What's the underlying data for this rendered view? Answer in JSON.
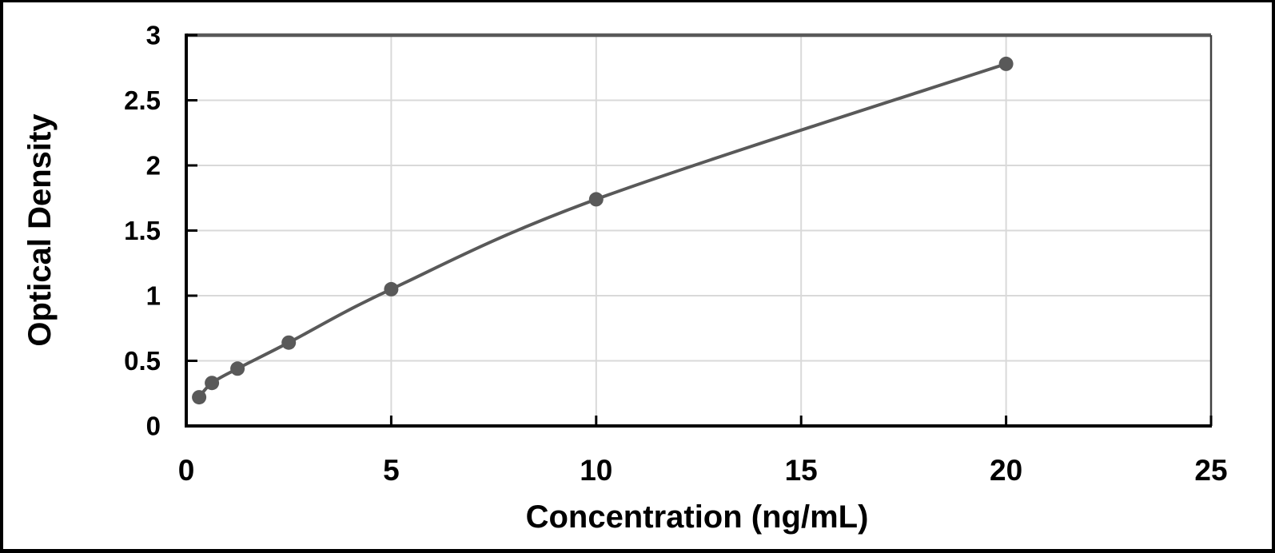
{
  "chart_data": {
    "type": "line",
    "title": "",
    "xlabel": "Concentration (ng/mL)",
    "ylabel": "Optical Density",
    "x": [
      0.313,
      0.625,
      1.25,
      2.5,
      5,
      10,
      20
    ],
    "series": [
      {
        "values": [
          0.22,
          0.33,
          0.44,
          0.64,
          1.05,
          1.74,
          2.78
        ]
      }
    ],
    "xlim": [
      0,
      25
    ],
    "ylim": [
      0,
      3
    ],
    "x_ticks": [
      0,
      5,
      10,
      15,
      20,
      25
    ],
    "y_ticks": [
      0,
      0.5,
      1,
      1.5,
      2,
      2.5,
      3
    ],
    "grid": true,
    "legend": "none",
    "marker": "circle",
    "curve": "smooth",
    "colors": {
      "line": "#595959",
      "marker": "#595959",
      "gridline": "#d9d9d9",
      "axis": "#000000",
      "plot_top_border": "#595959",
      "plot_right_border": "#404040",
      "frame": "#000000",
      "background": "#ffffff"
    }
  }
}
